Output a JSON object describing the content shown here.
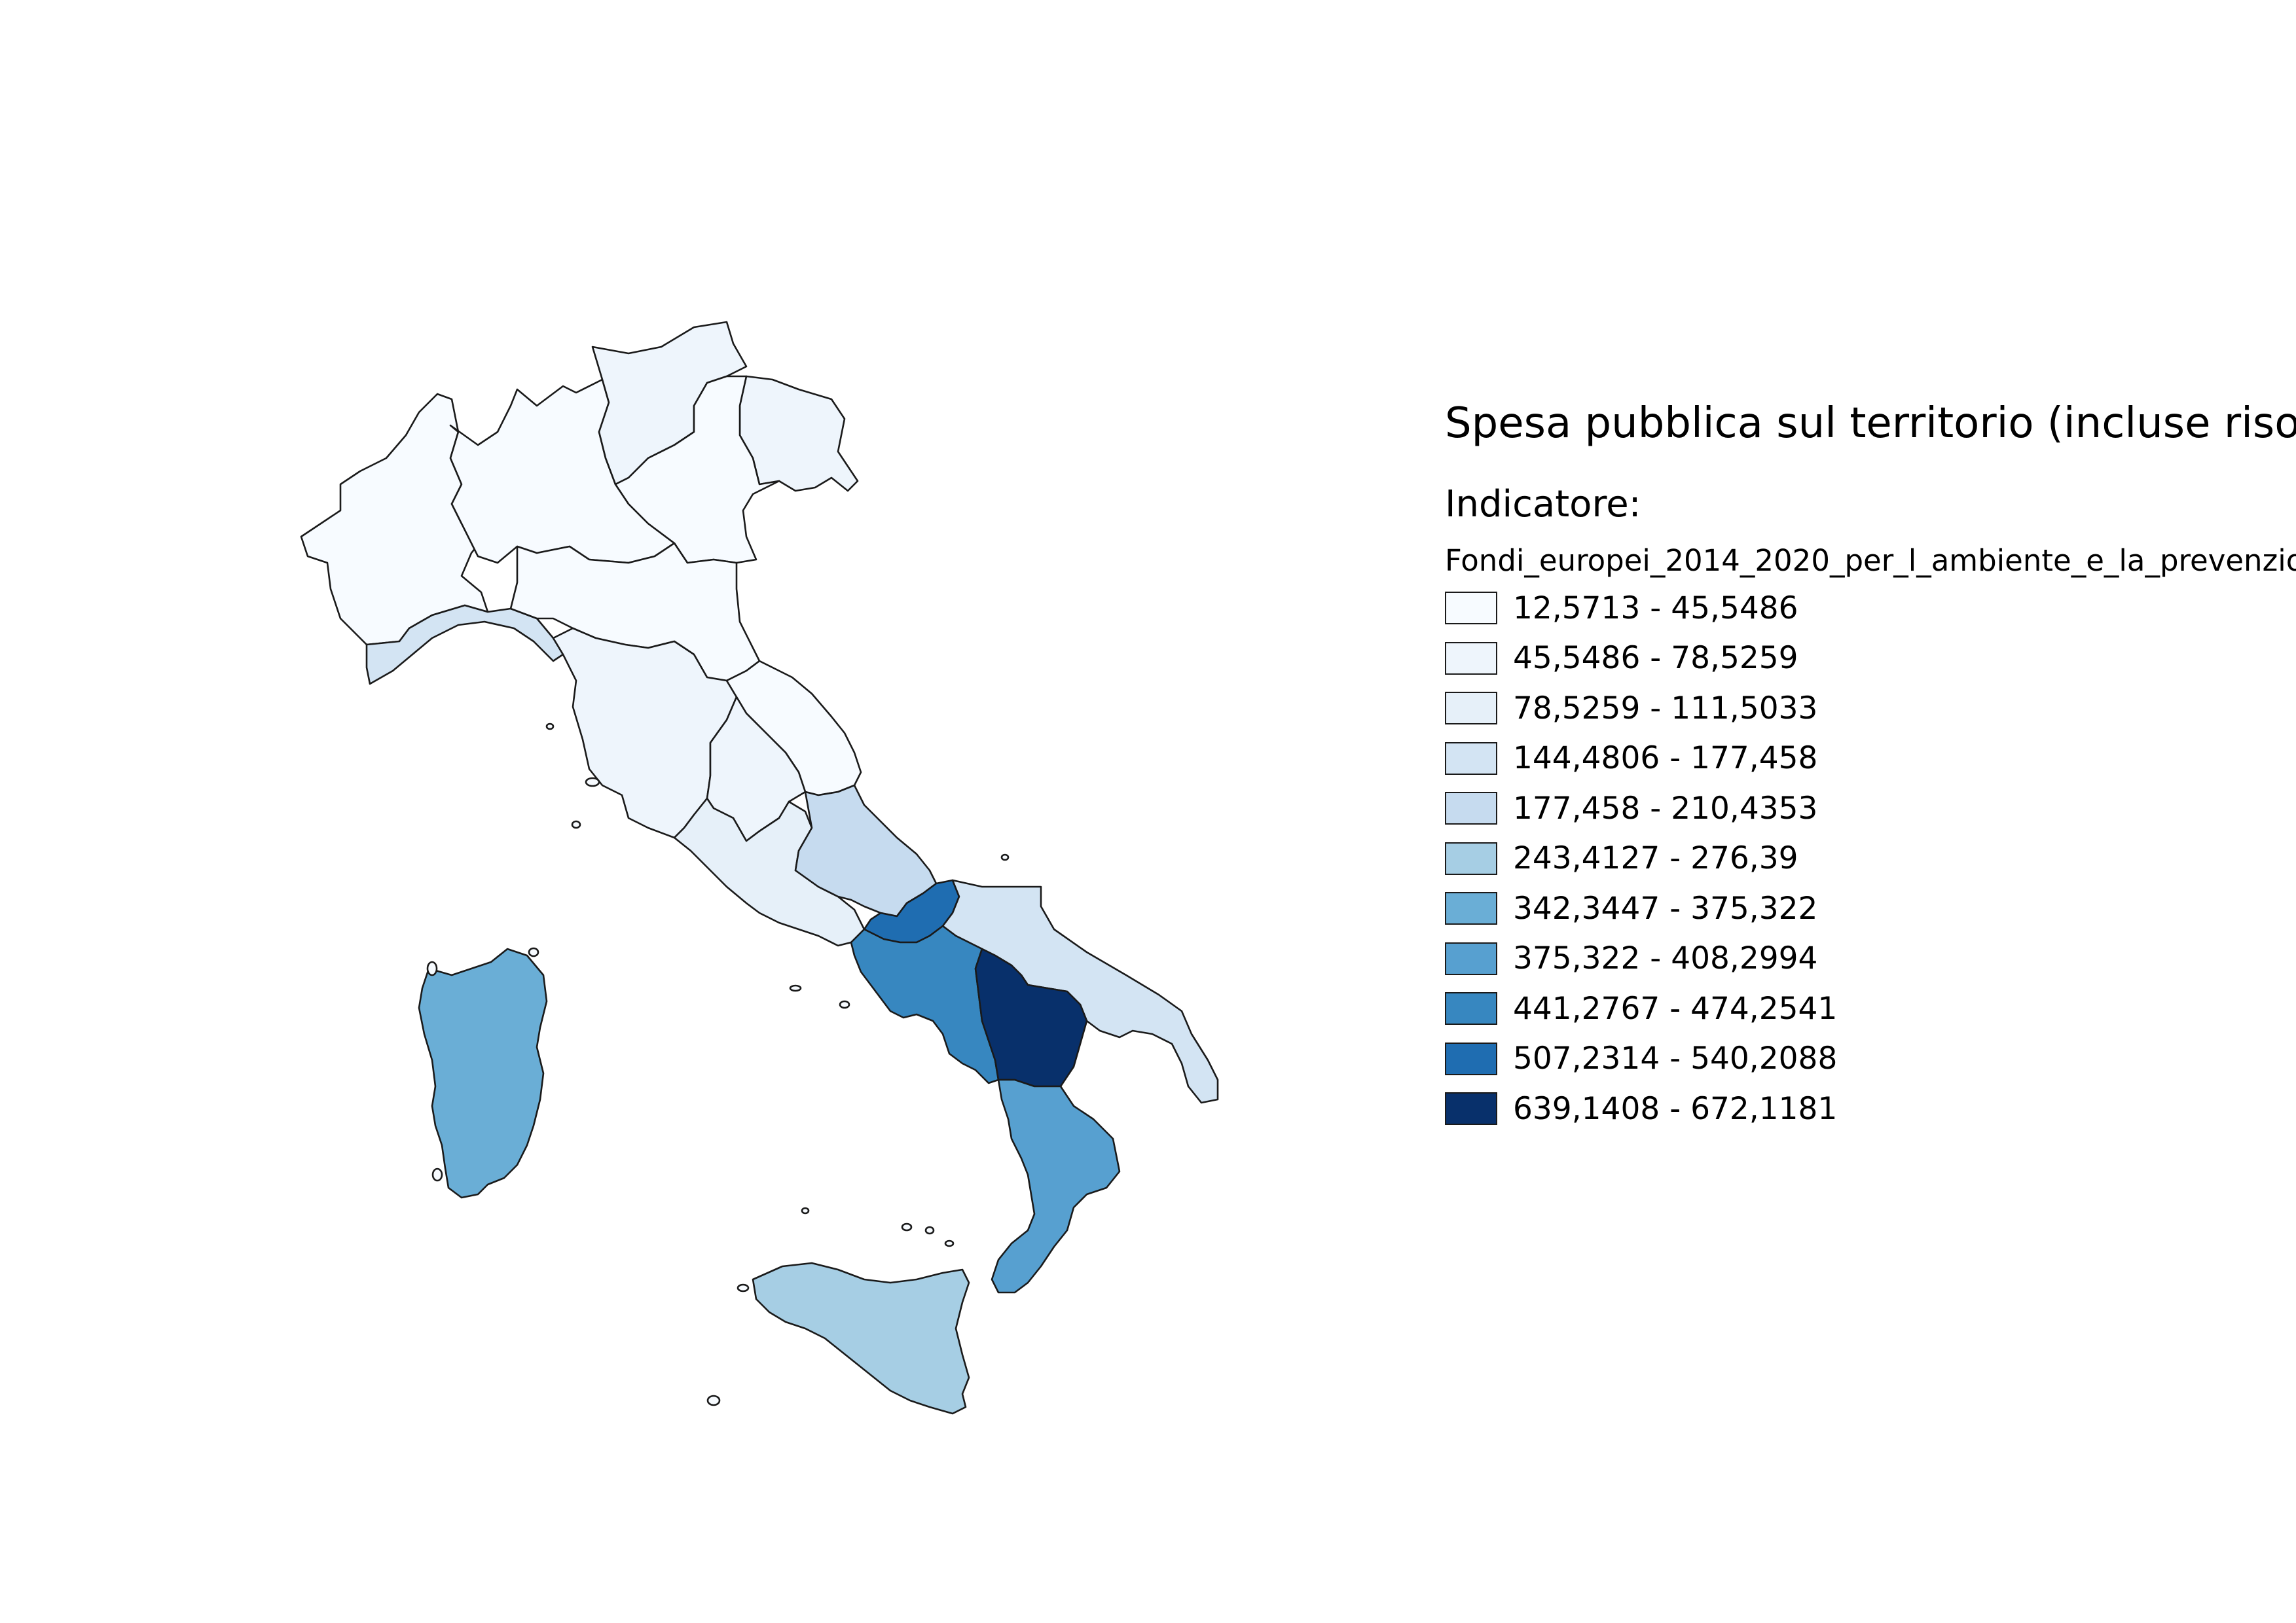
{
  "title": "Spesa pubblica sul territorio (incluse risorse",
  "legend": {
    "heading": "Indicatore:",
    "field": "Fondi_europei_2014_2020_per_l_ambiente_e_la_prevenzio",
    "classes": [
      {
        "label": "12,5713 - 45,5486",
        "color": "#f7fbff"
      },
      {
        "label": "45,5486 - 78,5259",
        "color": "#eef5fc"
      },
      {
        "label": "78,5259 - 111,5033",
        "color": "#e6f0f9"
      },
      {
        "label": "144,4806 - 177,458",
        "color": "#d3e4f3"
      },
      {
        "label": "177,458 - 210,4353",
        "color": "#c6dbef"
      },
      {
        "label": "243,4127 - 276,39",
        "color": "#a6cee4"
      },
      {
        "label": "342,3447 - 375,322",
        "color": "#6aaed6"
      },
      {
        "label": "375,322 - 408,2994",
        "color": "#57a0d0"
      },
      {
        "label": "441,2767 - 474,2541",
        "color": "#3787c0"
      },
      {
        "label": "507,2314 - 540,2088",
        "color": "#1f6db1"
      },
      {
        "label": "639,1408 - 672,1181",
        "color": "#08306b"
      }
    ]
  },
  "regions": [
    {
      "name": "Piemonte",
      "class": 0
    },
    {
      "name": "Valle d'Aosta",
      "class": 0
    },
    {
      "name": "Lombardia",
      "class": 0
    },
    {
      "name": "Trentino-Alto Adige",
      "class": 1
    },
    {
      "name": "Veneto",
      "class": 0
    },
    {
      "name": "Friuli-Venezia Giulia",
      "class": 1
    },
    {
      "name": "Liguria",
      "class": 3
    },
    {
      "name": "Emilia-Romagna",
      "class": 0
    },
    {
      "name": "Toscana",
      "class": 1
    },
    {
      "name": "Umbria",
      "class": 1
    },
    {
      "name": "Marche",
      "class": 0
    },
    {
      "name": "Lazio",
      "class": 2
    },
    {
      "name": "Abruzzo",
      "class": 4
    },
    {
      "name": "Molise",
      "class": 9
    },
    {
      "name": "Campania",
      "class": 8
    },
    {
      "name": "Puglia",
      "class": 3
    },
    {
      "name": "Basilicata",
      "class": 10
    },
    {
      "name": "Calabria",
      "class": 7
    },
    {
      "name": "Sicilia",
      "class": 5
    },
    {
      "name": "Sardegna",
      "class": 6
    }
  ]
}
